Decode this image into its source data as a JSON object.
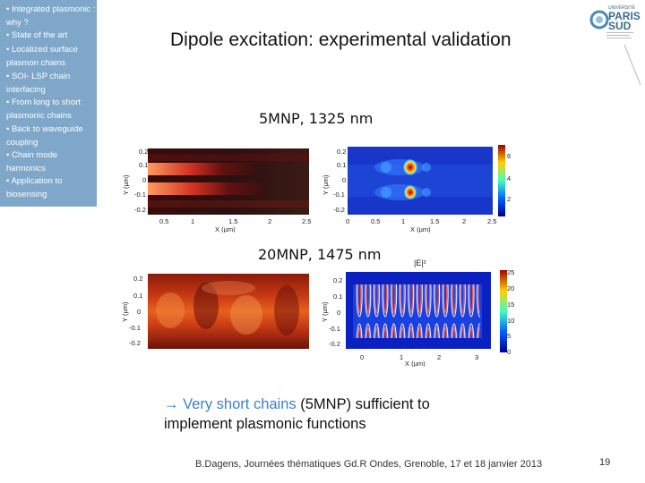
{
  "sidebar": {
    "items": [
      "• Integrated plasmonic : why ?",
      "• State of the art",
      "• Localized surface plasmon chains",
      "• SOI- LSP chain interfacing",
      "• From long to short plasmonic chains",
      "• Back to waveguide coupling",
      "• Chain mode harmonics",
      "• Application to biosensing"
    ]
  },
  "title": "Dipole excitation: experimental validation",
  "logo": {
    "line1": "UNIVERSITÉ",
    "line2": "PARIS",
    "line3": "SUD"
  },
  "panels": {
    "top_caption": "5MNP, 1325 nm",
    "bottom_caption": "20MNP, 1475 nm",
    "intensity_label": "|E|²",
    "top_left": {
      "xlabel": "X (µm)",
      "ylabel": "Y (µm)",
      "xticks": [
        "0.5",
        "1",
        "1.5",
        "2",
        "2.5"
      ],
      "yticks": [
        "0.2",
        "0.1",
        "0",
        "-0.1",
        "-0.2"
      ]
    },
    "top_right": {
      "xlabel": "X (µm)",
      "ylabel": "Y (µm)",
      "xticks": [
        "0",
        "0.5",
        "1",
        "1.5",
        "2",
        "2.5"
      ],
      "yticks": [
        "0.2",
        "0.1",
        "0",
        "-0.1",
        "-0.2"
      ],
      "cbar": [
        "6",
        "4",
        "2"
      ]
    },
    "bottom_left": {
      "ylabel": "Y (µm)",
      "yticks": [
        "0.2",
        "0.1",
        "0",
        "-0.1",
        "-0.2"
      ]
    },
    "bottom_right": {
      "xlabel": "X (µm)",
      "ylabel": "Y (µm)",
      "xticks": [
        "0",
        "1",
        "2",
        "3"
      ],
      "yticks": [
        "0.2",
        "0.1",
        "0",
        "-0.1",
        "-0.2"
      ],
      "cbar": [
        "25",
        "20",
        "15",
        "10",
        "5",
        "0"
      ]
    }
  },
  "conclusion": {
    "arrow": "→",
    "part1": " Very short chains",
    "part2": " (5MNP) sufficient to",
    "line2": "implement plasmonic functions"
  },
  "footer": "B.Dagens, Journées thématiques Gd.R Ondes, Grenoble, 17 et 18 janvier 2013",
  "page_number": "19",
  "colors": {
    "sidebar": "#7fa7c9",
    "accent": "#3a80c8"
  }
}
